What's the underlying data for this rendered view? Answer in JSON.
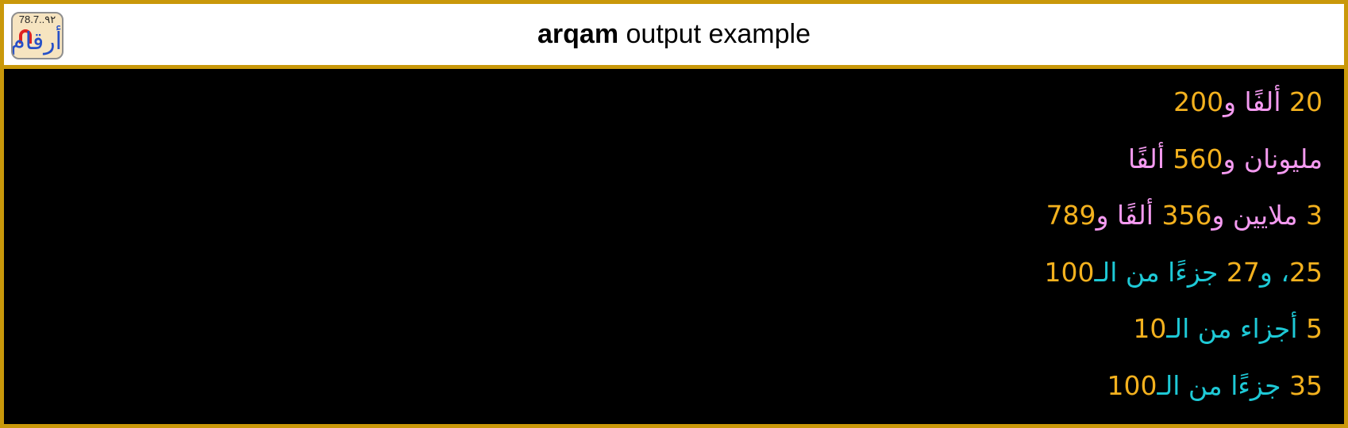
{
  "header": {
    "title_bold": "arqam",
    "title_rest": " output example",
    "logo": {
      "digits": "78.7..٩٢",
      "word": "أرقام"
    }
  },
  "colors": {
    "frame": "#c9980a",
    "number": "#f3b11e",
    "integer_words": "#f49af0",
    "fraction_words": "#1ec9d6",
    "console_bg": "#000000"
  },
  "lines": [
    {
      "segments": [
        {
          "text": "20",
          "role": "num"
        },
        {
          "text": " ألفًا و",
          "role": "pink"
        },
        {
          "text": "200",
          "role": "num"
        }
      ]
    },
    {
      "segments": [
        {
          "text": "مليونان و",
          "role": "pink"
        },
        {
          "text": "560",
          "role": "num"
        },
        {
          "text": " ألفًا",
          "role": "pink"
        }
      ]
    },
    {
      "segments": [
        {
          "text": "3",
          "role": "num"
        },
        {
          "text": " ملايين و",
          "role": "pink"
        },
        {
          "text": "356",
          "role": "num"
        },
        {
          "text": " ألفًا و",
          "role": "pink"
        },
        {
          "text": "789",
          "role": "num"
        }
      ]
    },
    {
      "segments": [
        {
          "text": "25",
          "role": "num"
        },
        {
          "text": "، و",
          "role": "cyan"
        },
        {
          "text": "27",
          "role": "num"
        },
        {
          "text": " جزءًا من الـ",
          "role": "cyan"
        },
        {
          "text": "100",
          "role": "num"
        }
      ]
    },
    {
      "segments": [
        {
          "text": "5",
          "role": "num"
        },
        {
          "text": " أجزاء من الـ",
          "role": "cyan"
        },
        {
          "text": "10",
          "role": "num"
        }
      ]
    },
    {
      "segments": [
        {
          "text": "35",
          "role": "num"
        },
        {
          "text": " جزءًا من الـ",
          "role": "cyan"
        },
        {
          "text": "100",
          "role": "num"
        }
      ]
    }
  ]
}
